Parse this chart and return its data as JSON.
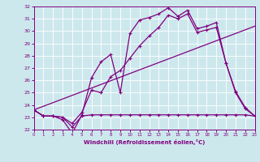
{
  "xlabel": "Windchill (Refroidissement éolien,°C)",
  "background_color": "#cde8ed",
  "line_color": "#800080",
  "grid_color": "#b0d4da",
  "xlim": [
    0,
    23
  ],
  "ylim": [
    22,
    32
  ],
  "xticks": [
    0,
    1,
    2,
    3,
    4,
    5,
    6,
    7,
    8,
    9,
    10,
    11,
    12,
    13,
    14,
    15,
    16,
    17,
    18,
    19,
    20,
    21,
    22,
    23
  ],
  "yticks": [
    22,
    23,
    24,
    25,
    26,
    27,
    28,
    29,
    30,
    31,
    32
  ],
  "curve1_x": [
    0,
    1,
    2,
    3,
    4,
    5,
    6,
    7,
    8,
    9,
    10,
    11,
    12,
    13,
    14,
    15,
    16,
    17,
    18,
    19,
    20,
    21,
    22,
    23
  ],
  "curve1_y": [
    23.6,
    23.1,
    23.1,
    23.0,
    22.2,
    23.1,
    23.2,
    23.2,
    23.2,
    23.2,
    23.2,
    23.2,
    23.2,
    23.2,
    23.2,
    23.2,
    23.2,
    23.2,
    23.2,
    23.2,
    23.2,
    23.2,
    23.2,
    23.1
  ],
  "curve2_x": [
    0,
    1,
    2,
    3,
    4,
    5,
    6,
    7,
    8,
    9,
    10,
    11,
    12,
    13,
    14,
    15,
    16,
    17,
    18,
    19,
    20,
    21,
    22,
    23
  ],
  "curve2_y": [
    23.6,
    23.1,
    23.1,
    22.8,
    21.7,
    23.2,
    26.2,
    27.5,
    28.1,
    25.0,
    29.8,
    30.9,
    31.1,
    31.4,
    31.9,
    31.2,
    31.7,
    30.2,
    30.4,
    30.7,
    27.4,
    25.0,
    23.7,
    23.1
  ],
  "curve3_x": [
    0,
    23
  ],
  "curve3_y": [
    23.6,
    30.4
  ],
  "curve4_x": [
    0,
    1,
    2,
    3,
    4,
    5,
    6,
    7,
    8,
    9,
    10,
    11,
    12,
    13,
    14,
    15,
    16,
    17,
    18,
    19,
    20,
    21,
    22,
    23
  ],
  "curve4_y": [
    23.6,
    23.1,
    23.1,
    23.0,
    22.5,
    23.4,
    25.2,
    25.0,
    26.3,
    26.8,
    27.8,
    28.8,
    29.6,
    30.3,
    31.3,
    31.0,
    31.4,
    29.9,
    30.1,
    30.3,
    27.4,
    25.1,
    23.8,
    23.1
  ]
}
